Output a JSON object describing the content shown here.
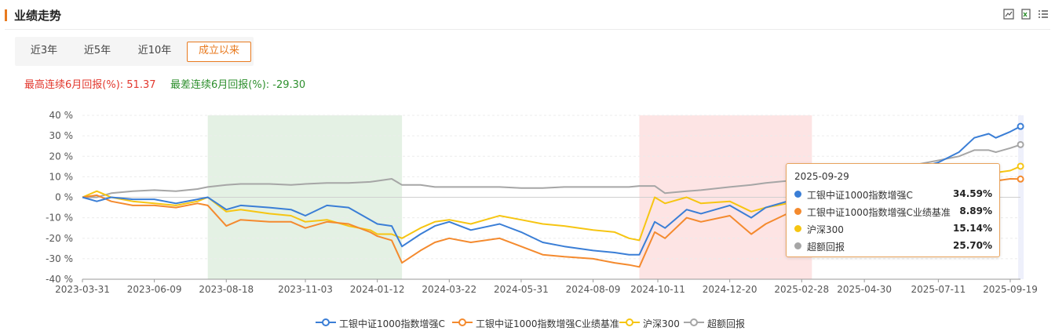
{
  "header": {
    "title": "业绩走势",
    "tools": [
      "image-download-icon",
      "excel-export-icon",
      "list-menu-icon"
    ]
  },
  "range_tabs": [
    {
      "label": "近3年",
      "active": false
    },
    {
      "label": "近5年",
      "active": false
    },
    {
      "label": "近10年",
      "active": false
    },
    {
      "label": "成立以来",
      "active": true
    }
  ],
  "stats": {
    "max_label": "最高连续6月回报(%): 51.37",
    "min_label": "最差连续6月回报(%): -29.30"
  },
  "colors": {
    "accent": "#e87a1f",
    "s1": "#3a7ed6",
    "s2": "#f48a2e",
    "s3": "#f6c512",
    "s4": "#a6a6a6",
    "band_green": "#e4f1e4",
    "band_red": "#fde4e4"
  },
  "tooltip": {
    "date": "2025-09-29",
    "rows": [
      {
        "name": "工银中证1000指数增强C",
        "value": "34.59%",
        "color": "#3a7ed6"
      },
      {
        "name": "工银中证1000指数增强C业绩基准",
        "value": "8.89%",
        "color": "#f48a2e"
      },
      {
        "name": "沪深300",
        "value": "15.14%",
        "color": "#f6c512"
      },
      {
        "name": "超额回报",
        "value": "25.70%",
        "color": "#a6a6a6"
      }
    ]
  },
  "chart_data": {
    "type": "line",
    "ylim": [
      -40,
      40
    ],
    "yticks": [
      40,
      30,
      20,
      10,
      0,
      -10,
      -20,
      -30,
      -40
    ],
    "ytick_labels": [
      "40 %",
      "30 %",
      "20 %",
      "10 %",
      "0 %",
      "-10 %",
      "-20 %",
      "-30 %",
      "-40 %"
    ],
    "xtick_labels": [
      "2023-03-31",
      "2023-06-09",
      "2023-08-18",
      "2023-11-03",
      "2024-01-12",
      "2024-03-22",
      "2024-05-31",
      "2024-08-09",
      "2024-10-11",
      "2024-12-20",
      "2025-02-28",
      "2025-04-30",
      "2025-07-11",
      "2025-09-19"
    ],
    "bands": [
      {
        "from": "2023-07-31",
        "to": "2024-02-05",
        "color": "green"
      },
      {
        "from": "2024-09-23",
        "to": "2025-03-10",
        "color": "red"
      }
    ],
    "series": [
      {
        "name": "工银中证1000指数增强C",
        "color": "#3a7ed6",
        "points": [
          [
            "2023-03-31",
            0
          ],
          [
            "2023-04-14",
            -2
          ],
          [
            "2023-04-28",
            0
          ],
          [
            "2023-05-19",
            -1
          ],
          [
            "2023-06-09",
            -1
          ],
          [
            "2023-06-30",
            -3
          ],
          [
            "2023-07-21",
            -1
          ],
          [
            "2023-07-31",
            0
          ],
          [
            "2023-08-18",
            -6
          ],
          [
            "2023-09-01",
            -4
          ],
          [
            "2023-09-29",
            -5
          ],
          [
            "2023-10-20",
            -6
          ],
          [
            "2023-11-03",
            -9
          ],
          [
            "2023-11-24",
            -4
          ],
          [
            "2023-12-15",
            -5
          ],
          [
            "2024-01-05",
            -11
          ],
          [
            "2024-01-12",
            -13
          ],
          [
            "2024-01-26",
            -14
          ],
          [
            "2024-02-05",
            -24
          ],
          [
            "2024-02-23",
            -18
          ],
          [
            "2024-03-08",
            -14
          ],
          [
            "2024-03-22",
            -12
          ],
          [
            "2024-04-12",
            -16
          ],
          [
            "2024-05-10",
            -13
          ],
          [
            "2024-05-31",
            -17
          ],
          [
            "2024-06-21",
            -22
          ],
          [
            "2024-07-12",
            -24
          ],
          [
            "2024-08-09",
            -26
          ],
          [
            "2024-08-30",
            -27
          ],
          [
            "2024-09-13",
            -28
          ],
          [
            "2024-09-23",
            -28
          ],
          [
            "2024-10-08",
            -12
          ],
          [
            "2024-10-18",
            -15
          ],
          [
            "2024-11-08",
            -6
          ],
          [
            "2024-11-22",
            -8
          ],
          [
            "2024-12-20",
            -4
          ],
          [
            "2025-01-10",
            -10
          ],
          [
            "2025-01-24",
            -5
          ],
          [
            "2025-02-14",
            -2
          ],
          [
            "2025-02-28",
            0
          ],
          [
            "2025-03-21",
            3
          ],
          [
            "2025-04-11",
            -2
          ],
          [
            "2025-04-30",
            9
          ],
          [
            "2025-05-30",
            12
          ],
          [
            "2025-06-20",
            14
          ],
          [
            "2025-07-11",
            17
          ],
          [
            "2025-07-31",
            22
          ],
          [
            "2025-08-15",
            29
          ],
          [
            "2025-08-29",
            31
          ],
          [
            "2025-09-05",
            29
          ],
          [
            "2025-09-19",
            32
          ],
          [
            "2025-09-29",
            34.59
          ]
        ]
      },
      {
        "name": "工银中证1000指数增强C业绩基准",
        "color": "#f48a2e",
        "points": [
          [
            "2023-03-31",
            0
          ],
          [
            "2023-04-14",
            1
          ],
          [
            "2023-04-28",
            -2
          ],
          [
            "2023-05-19",
            -4
          ],
          [
            "2023-06-09",
            -4
          ],
          [
            "2023-06-30",
            -5
          ],
          [
            "2023-07-21",
            -3
          ],
          [
            "2023-07-31",
            -4
          ],
          [
            "2023-08-18",
            -14
          ],
          [
            "2023-09-01",
            -11
          ],
          [
            "2023-09-29",
            -12
          ],
          [
            "2023-10-20",
            -12
          ],
          [
            "2023-11-03",
            -15
          ],
          [
            "2023-11-24",
            -12
          ],
          [
            "2023-12-15",
            -13
          ],
          [
            "2024-01-05",
            -17
          ],
          [
            "2024-01-12",
            -19
          ],
          [
            "2024-01-26",
            -21
          ],
          [
            "2024-02-05",
            -32
          ],
          [
            "2024-02-23",
            -26
          ],
          [
            "2024-03-08",
            -22
          ],
          [
            "2024-03-22",
            -20
          ],
          [
            "2024-04-12",
            -22
          ],
          [
            "2024-05-10",
            -20
          ],
          [
            "2024-05-31",
            -24
          ],
          [
            "2024-06-21",
            -28
          ],
          [
            "2024-07-12",
            -29
          ],
          [
            "2024-08-09",
            -30
          ],
          [
            "2024-08-30",
            -32
          ],
          [
            "2024-09-13",
            -33
          ],
          [
            "2024-09-23",
            -34
          ],
          [
            "2024-10-08",
            -17
          ],
          [
            "2024-10-18",
            -20
          ],
          [
            "2024-11-08",
            -10
          ],
          [
            "2024-11-22",
            -12
          ],
          [
            "2024-12-20",
            -9
          ],
          [
            "2025-01-10",
            -18
          ],
          [
            "2025-01-24",
            -13
          ],
          [
            "2025-02-14",
            -8
          ],
          [
            "2025-02-28",
            -5
          ],
          [
            "2025-03-21",
            -3
          ],
          [
            "2025-04-11",
            -8
          ],
          [
            "2025-04-30",
            -3
          ],
          [
            "2025-05-30",
            0
          ],
          [
            "2025-06-20",
            2
          ],
          [
            "2025-07-11",
            3
          ],
          [
            "2025-07-31",
            5
          ],
          [
            "2025-08-15",
            7
          ],
          [
            "2025-08-29",
            8
          ],
          [
            "2025-09-05",
            8
          ],
          [
            "2025-09-19",
            9
          ],
          [
            "2025-09-29",
            8.89
          ]
        ]
      },
      {
        "name": "沪深300",
        "color": "#f6c512",
        "points": [
          [
            "2023-03-31",
            0
          ],
          [
            "2023-04-14",
            3
          ],
          [
            "2023-04-28",
            0
          ],
          [
            "2023-05-19",
            -2
          ],
          [
            "2023-06-09",
            -3
          ],
          [
            "2023-06-30",
            -4
          ],
          [
            "2023-07-21",
            -2
          ],
          [
            "2023-07-31",
            0
          ],
          [
            "2023-08-18",
            -7
          ],
          [
            "2023-09-01",
            -6
          ],
          [
            "2023-09-29",
            -8
          ],
          [
            "2023-10-20",
            -9
          ],
          [
            "2023-11-03",
            -12
          ],
          [
            "2023-11-24",
            -11
          ],
          [
            "2023-12-15",
            -14
          ],
          [
            "2024-01-05",
            -16
          ],
          [
            "2024-01-12",
            -18
          ],
          [
            "2024-01-26",
            -18
          ],
          [
            "2024-02-05",
            -20
          ],
          [
            "2024-02-23",
            -15
          ],
          [
            "2024-03-08",
            -12
          ],
          [
            "2024-03-22",
            -11
          ],
          [
            "2024-04-12",
            -13
          ],
          [
            "2024-05-10",
            -9
          ],
          [
            "2024-05-31",
            -11
          ],
          [
            "2024-06-21",
            -13
          ],
          [
            "2024-07-12",
            -14
          ],
          [
            "2024-08-09",
            -16
          ],
          [
            "2024-08-30",
            -17
          ],
          [
            "2024-09-13",
            -20
          ],
          [
            "2024-09-23",
            -21
          ],
          [
            "2024-10-08",
            0
          ],
          [
            "2024-10-18",
            -3
          ],
          [
            "2024-11-08",
            0
          ],
          [
            "2024-11-22",
            -3
          ],
          [
            "2024-12-20",
            -2
          ],
          [
            "2025-01-10",
            -7
          ],
          [
            "2025-01-24",
            -5
          ],
          [
            "2025-02-14",
            -3
          ],
          [
            "2025-02-28",
            -2
          ],
          [
            "2025-03-21",
            -1
          ],
          [
            "2025-04-11",
            -6
          ],
          [
            "2025-04-30",
            -3
          ],
          [
            "2025-05-30",
            0
          ],
          [
            "2025-06-20",
            2
          ],
          [
            "2025-07-11",
            5
          ],
          [
            "2025-07-31",
            7
          ],
          [
            "2025-08-15",
            10
          ],
          [
            "2025-08-29",
            12
          ],
          [
            "2025-09-05",
            12
          ],
          [
            "2025-09-19",
            13
          ],
          [
            "2025-09-29",
            15.14
          ]
        ]
      },
      {
        "name": "超额回报",
        "color": "#a6a6a6",
        "points": [
          [
            "2023-03-31",
            0
          ],
          [
            "2023-04-14",
            0
          ],
          [
            "2023-04-28",
            2
          ],
          [
            "2023-05-19",
            3
          ],
          [
            "2023-06-09",
            3.5
          ],
          [
            "2023-06-30",
            3
          ],
          [
            "2023-07-21",
            4
          ],
          [
            "2023-07-31",
            5
          ],
          [
            "2023-08-18",
            6
          ],
          [
            "2023-09-01",
            6.5
          ],
          [
            "2023-09-29",
            6.5
          ],
          [
            "2023-10-20",
            6
          ],
          [
            "2023-11-03",
            6.5
          ],
          [
            "2023-11-24",
            7
          ],
          [
            "2023-12-15",
            7
          ],
          [
            "2024-01-05",
            7.5
          ],
          [
            "2024-01-12",
            8
          ],
          [
            "2024-01-26",
            9
          ],
          [
            "2024-02-05",
            6
          ],
          [
            "2024-02-23",
            6
          ],
          [
            "2024-03-08",
            5
          ],
          [
            "2024-03-22",
            5
          ],
          [
            "2024-04-12",
            5
          ],
          [
            "2024-05-10",
            5
          ],
          [
            "2024-05-31",
            4.5
          ],
          [
            "2024-06-21",
            4.5
          ],
          [
            "2024-07-12",
            5
          ],
          [
            "2024-08-09",
            5
          ],
          [
            "2024-08-30",
            5
          ],
          [
            "2024-09-13",
            5
          ],
          [
            "2024-09-23",
            5.5
          ],
          [
            "2024-10-08",
            5.5
          ],
          [
            "2024-10-18",
            2
          ],
          [
            "2024-11-08",
            3
          ],
          [
            "2024-11-22",
            3.5
          ],
          [
            "2024-12-20",
            5
          ],
          [
            "2025-01-10",
            6
          ],
          [
            "2025-01-24",
            7
          ],
          [
            "2025-02-14",
            8
          ],
          [
            "2025-02-28",
            9
          ],
          [
            "2025-03-21",
            11
          ],
          [
            "2025-04-11",
            12
          ],
          [
            "2025-04-30",
            14
          ],
          [
            "2025-05-30",
            15
          ],
          [
            "2025-06-20",
            16
          ],
          [
            "2025-07-11",
            18
          ],
          [
            "2025-07-31",
            20
          ],
          [
            "2025-08-15",
            23
          ],
          [
            "2025-08-29",
            23
          ],
          [
            "2025-09-05",
            22
          ],
          [
            "2025-09-19",
            24
          ],
          [
            "2025-09-29",
            25.7
          ]
        ]
      }
    ],
    "legend_position": "bottom"
  }
}
